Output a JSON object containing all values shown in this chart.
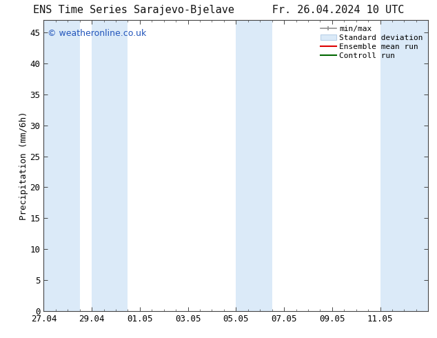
{
  "title_left": "ENS Time Series Sarajevo-Bjelave",
  "title_right": "Fr. 26.04.2024 10 UTC",
  "ylabel": "Precipitation (mm/6h)",
  "watermark": "© weatheronline.co.uk",
  "ylim": [
    0,
    47
  ],
  "yticks": [
    0,
    5,
    10,
    15,
    20,
    25,
    30,
    35,
    40,
    45
  ],
  "xlim": [
    0,
    16
  ],
  "background_color": "#ffffff",
  "plot_bg_color": "#ffffff",
  "shaded_band_color": "#dbeaf8",
  "shaded_band_edge_color": "#b8d0e8",
  "minmax_color": "#909090",
  "ensemble_mean_color": "#dd0000",
  "control_run_color": "#006600",
  "legend_labels": [
    "min/max",
    "Standard deviation",
    "Ensemble mean run",
    "Controll run"
  ],
  "tick_labels": [
    "27.04",
    "29.04",
    "01.05",
    "03.05",
    "05.05",
    "07.05",
    "09.05",
    "11.05"
  ],
  "tick_positions": [
    0,
    2,
    4,
    6,
    8,
    10,
    12,
    14
  ],
  "shaded_regions": [
    [
      0.0,
      1.5
    ],
    [
      2.0,
      3.5
    ],
    [
      8.0,
      9.5
    ],
    [
      14.0,
      16.0
    ]
  ],
  "title_fontsize": 11,
  "axis_fontsize": 9,
  "watermark_color": "#2255bb",
  "watermark_fontsize": 9,
  "legend_fontsize": 8
}
